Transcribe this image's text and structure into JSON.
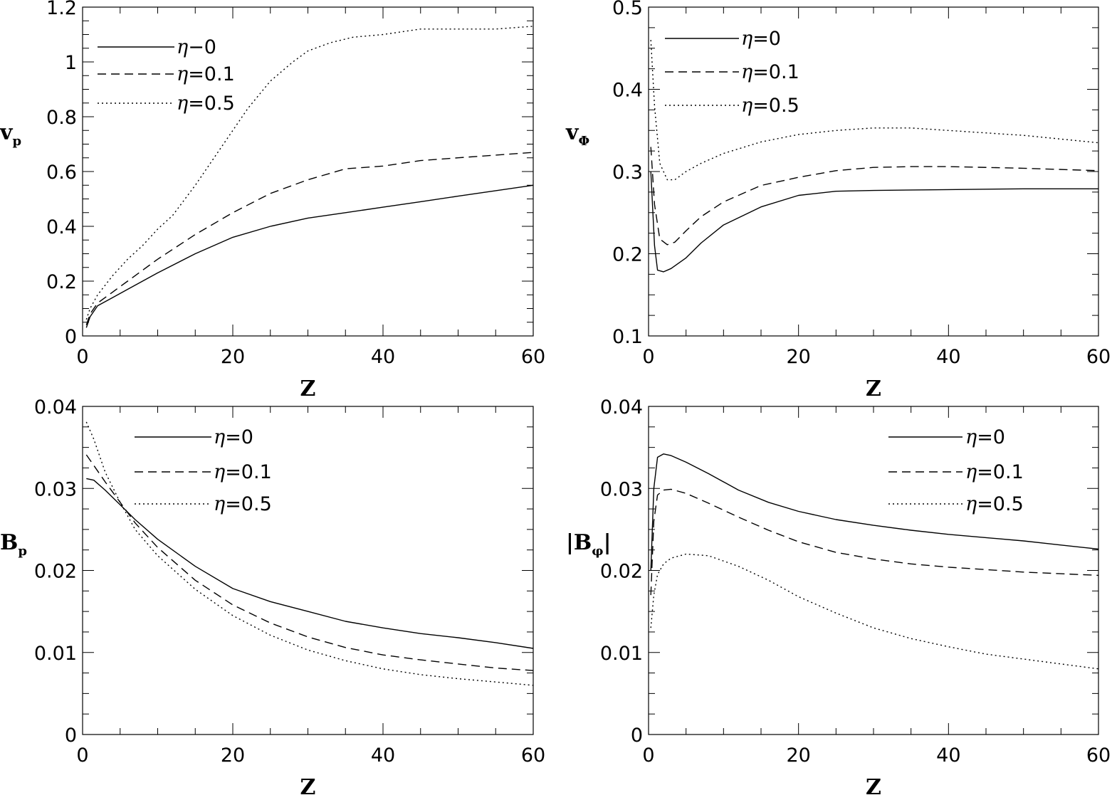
{
  "chart_data": [
    {
      "type": "line",
      "panel": "top-left",
      "xlabel": "Z",
      "ylabel": "v_p",
      "xlim": [
        0,
        60
      ],
      "ylim": [
        0,
        1.2
      ],
      "xticks": [
        "0",
        "20",
        "40",
        "60"
      ],
      "yticks": [
        "0",
        "0.2",
        "0.4",
        "0.6",
        "0.8",
        "1",
        "1.2"
      ],
      "legend_position": "top-left",
      "series": [
        {
          "name": "η−0",
          "style": "solid",
          "x": [
            0.5,
            1,
            2,
            4,
            6,
            10,
            15,
            20,
            25,
            30,
            35,
            40,
            45,
            50,
            55,
            60
          ],
          "y": [
            0.03,
            0.07,
            0.11,
            0.14,
            0.17,
            0.23,
            0.3,
            0.36,
            0.4,
            0.43,
            0.45,
            0.47,
            0.49,
            0.51,
            0.53,
            0.55
          ]
        },
        {
          "name": "η=0.1",
          "style": "dashed",
          "x": [
            0.5,
            1,
            2,
            4,
            6,
            10,
            15,
            20,
            25,
            30,
            35,
            40,
            45,
            50,
            55,
            60
          ],
          "y": [
            0.04,
            0.08,
            0.12,
            0.16,
            0.2,
            0.28,
            0.37,
            0.45,
            0.52,
            0.57,
            0.61,
            0.62,
            0.64,
            0.65,
            0.66,
            0.67
          ]
        },
        {
          "name": "η=0.5",
          "style": "dotted",
          "x": [
            0.5,
            1,
            2,
            4,
            6,
            8,
            10,
            12,
            15,
            18,
            20,
            22,
            25,
            28,
            30,
            33,
            36,
            40,
            45,
            50,
            55,
            60
          ],
          "y": [
            0.06,
            0.1,
            0.15,
            0.22,
            0.28,
            0.33,
            0.39,
            0.44,
            0.55,
            0.67,
            0.75,
            0.83,
            0.93,
            1.0,
            1.04,
            1.07,
            1.09,
            1.1,
            1.12,
            1.12,
            1.12,
            1.13
          ]
        }
      ]
    },
    {
      "type": "line",
      "panel": "top-right",
      "xlabel": "Z",
      "ylabel": "v_Φ",
      "xlim": [
        0,
        60
      ],
      "ylim": [
        0.1,
        0.5
      ],
      "xticks": [
        "0",
        "20",
        "40",
        "60"
      ],
      "yticks": [
        "0.1",
        "0.2",
        "0.3",
        "0.4",
        "0.5"
      ],
      "legend_position": "top-left",
      "series": [
        {
          "name": "η=0",
          "style": "solid",
          "x": [
            0.3,
            0.8,
            1.2,
            2,
            3,
            5,
            7,
            10,
            15,
            20,
            25,
            30,
            40,
            50,
            60
          ],
          "y": [
            0.3,
            0.21,
            0.18,
            0.178,
            0.182,
            0.195,
            0.213,
            0.235,
            0.257,
            0.271,
            0.276,
            0.277,
            0.278,
            0.279,
            0.279
          ]
        },
        {
          "name": "η=0.1",
          "style": "dashed",
          "x": [
            0.3,
            0.8,
            1.5,
            2.5,
            3.5,
            5,
            7,
            10,
            15,
            20,
            25,
            30,
            35,
            40,
            50,
            60
          ],
          "y": [
            0.33,
            0.26,
            0.218,
            0.211,
            0.214,
            0.228,
            0.245,
            0.263,
            0.283,
            0.293,
            0.301,
            0.305,
            0.306,
            0.306,
            0.304,
            0.301
          ]
        },
        {
          "name": "η=0.5",
          "style": "dotted",
          "x": [
            0.3,
            0.8,
            1.5,
            2.5,
            3.5,
            5,
            7,
            10,
            15,
            20,
            25,
            30,
            35,
            40,
            50,
            60
          ],
          "y": [
            0.46,
            0.38,
            0.31,
            0.29,
            0.29,
            0.3,
            0.31,
            0.322,
            0.336,
            0.345,
            0.35,
            0.353,
            0.353,
            0.35,
            0.344,
            0.335
          ]
        }
      ]
    },
    {
      "type": "line",
      "panel": "bottom-left",
      "xlabel": "Z",
      "ylabel": "B_p",
      "xlim": [
        0,
        60
      ],
      "ylim": [
        0,
        0.04
      ],
      "xticks": [
        "0",
        "20",
        "40",
        "60"
      ],
      "yticks": [
        "0",
        "0.01",
        "0.02",
        "0.03",
        "0.04"
      ],
      "legend_position": "top-right",
      "series": [
        {
          "name": "η=0",
          "style": "solid",
          "x": [
            0.5,
            1.5,
            3,
            5,
            7,
            10,
            15,
            20,
            25,
            30,
            35,
            40,
            45,
            50,
            55,
            60
          ],
          "y": [
            0.0312,
            0.031,
            0.0298,
            0.028,
            0.0262,
            0.0238,
            0.0205,
            0.0178,
            0.0162,
            0.015,
            0.0138,
            0.013,
            0.0123,
            0.0118,
            0.0112,
            0.0105
          ]
        },
        {
          "name": "η=0.1",
          "style": "dashed",
          "x": [
            0.5,
            1.5,
            3,
            5,
            7,
            10,
            15,
            20,
            25,
            30,
            35,
            40,
            45,
            50,
            55,
            60
          ],
          "y": [
            0.0341,
            0.0328,
            0.0308,
            0.0283,
            0.0258,
            0.0228,
            0.0188,
            0.0158,
            0.0136,
            0.0119,
            0.0106,
            0.0097,
            0.0091,
            0.0086,
            0.0081,
            0.0078
          ]
        },
        {
          "name": "η=0.5",
          "style": "dotted",
          "x": [
            0.5,
            1.5,
            3,
            5,
            7,
            10,
            15,
            20,
            25,
            30,
            35,
            40,
            45,
            50,
            55,
            60
          ],
          "y": [
            0.0381,
            0.036,
            0.032,
            0.0283,
            0.025,
            0.0218,
            0.0177,
            0.0145,
            0.0121,
            0.0103,
            0.009,
            0.008,
            0.0073,
            0.0068,
            0.0064,
            0.006
          ]
        }
      ]
    },
    {
      "type": "line",
      "panel": "bottom-right",
      "xlabel": "Z",
      "ylabel": "|B_φ|",
      "xlim": [
        0,
        60
      ],
      "ylim": [
        0,
        0.04
      ],
      "xticks": [
        "0",
        "20",
        "40",
        "60"
      ],
      "yticks": [
        "0",
        "0.01",
        "0.02",
        "0.03",
        "0.04"
      ],
      "legend_position": "top-right",
      "series": [
        {
          "name": "η=0",
          "style": "solid",
          "x": [
            0.3,
            0.7,
            1.2,
            2,
            3,
            5,
            8,
            12,
            16,
            20,
            25,
            30,
            35,
            40,
            45,
            50,
            55,
            60
          ],
          "y": [
            0.02,
            0.03,
            0.0338,
            0.0342,
            0.034,
            0.0332,
            0.0318,
            0.0298,
            0.0283,
            0.0272,
            0.0262,
            0.0255,
            0.0249,
            0.0244,
            0.024,
            0.0236,
            0.0231,
            0.0226
          ]
        },
        {
          "name": "η=0.1",
          "style": "dashed",
          "x": [
            0.3,
            0.7,
            1.2,
            2,
            3,
            5,
            8,
            12,
            16,
            20,
            25,
            30,
            35,
            40,
            45,
            50,
            55,
            60
          ],
          "y": [
            0.017,
            0.026,
            0.0292,
            0.0298,
            0.0299,
            0.0294,
            0.0282,
            0.0265,
            0.0249,
            0.0235,
            0.0222,
            0.0214,
            0.0208,
            0.0204,
            0.0201,
            0.0198,
            0.0196,
            0.0194
          ]
        },
        {
          "name": "η=0.5",
          "style": "dotted",
          "x": [
            0.3,
            0.7,
            1.2,
            2,
            3,
            5,
            8,
            12,
            16,
            20,
            25,
            30,
            35,
            40,
            45,
            50,
            55,
            60
          ],
          "y": [
            0.013,
            0.017,
            0.0195,
            0.0208,
            0.0215,
            0.022,
            0.0218,
            0.0205,
            0.0188,
            0.0168,
            0.0148,
            0.013,
            0.0117,
            0.0107,
            0.0098,
            0.0092,
            0.0086,
            0.008
          ]
        }
      ]
    }
  ]
}
